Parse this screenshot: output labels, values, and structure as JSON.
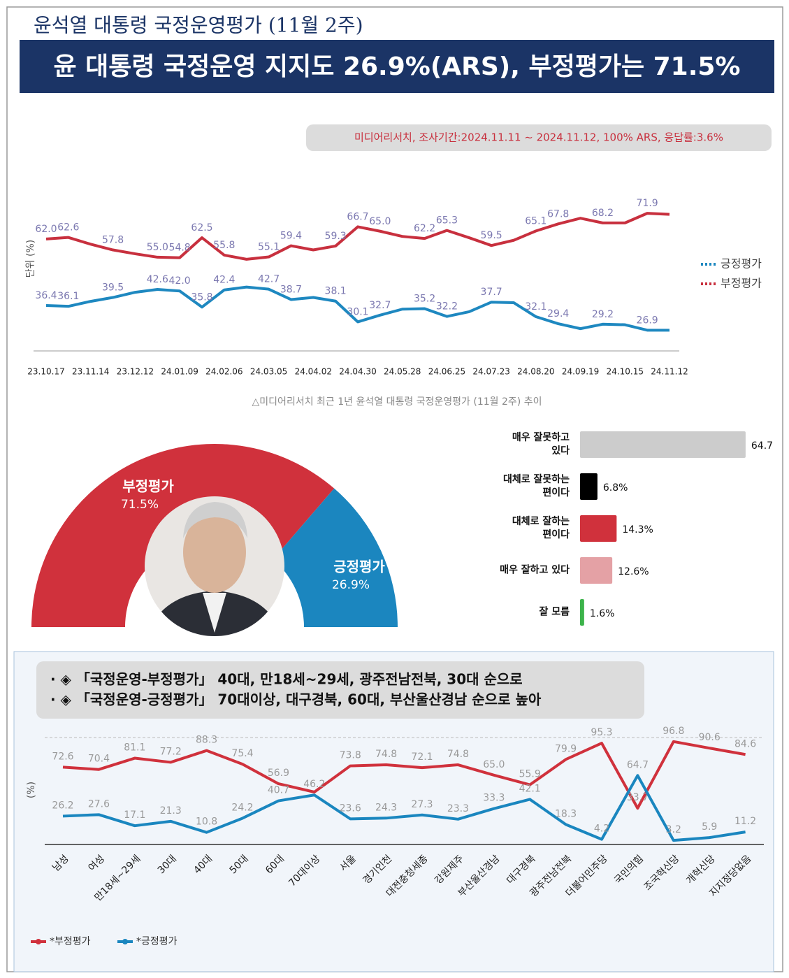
{
  "header": {
    "title": "윤석열 대통령 국정운영평가 (11월 2주)",
    "headline": "윤 대통령 국정운영 지지도 26.9%(ARS), 부정평가는 71.5%",
    "source": "미디어리서치, 조사기간:2024.11.11 ~ 2024.11.12, 100% ARS, 응답률:3.6%"
  },
  "chart_data": [
    {
      "type": "line",
      "ylabel": "단위 (%)",
      "caption": "△미디어리서치 최근 1년 윤석열 대통령 국정운영평가 (11월 2주) 추이",
      "legend": "right",
      "ylim": [
        20,
        80
      ],
      "categories": [
        "23.10.17",
        null,
        "23.11.14",
        null,
        "23.12.12",
        null,
        "24.01.09",
        null,
        "24.02.06",
        null,
        "24.03.05",
        null,
        "24.04.02",
        null,
        "24.04.30",
        null,
        "24.05.28",
        null,
        "24.06.25",
        null,
        "24.07.23",
        null,
        "24.08.20",
        null,
        "24.09.19",
        null,
        "24.10.15",
        null,
        "24.11.12"
      ],
      "series": [
        {
          "name": "긍정평가",
          "color": "#1e88c0",
          "values": [
            36.4,
            36.1,
            38.0,
            39.5,
            41.5,
            42.6,
            42.0,
            35.8,
            42.4,
            43.5,
            42.7,
            38.7,
            39.5,
            38.1,
            30.1,
            32.7,
            35.0,
            35.2,
            32.2,
            34.0,
            37.7,
            37.5,
            32.1,
            29.4,
            27.5,
            29.2,
            29.0,
            26.9,
            26.9
          ],
          "value_labels": [
            "36.4",
            "36.1",
            null,
            "39.5",
            null,
            "42.6",
            "42.0",
            "35.8",
            "42.4",
            null,
            "42.7",
            "38.7",
            null,
            "38.1",
            "30.1",
            "32.7",
            null,
            "35.2",
            "32.2",
            null,
            "37.7",
            null,
            "32.1",
            "29.4",
            null,
            "29.2",
            null,
            "26.9",
            null
          ]
        },
        {
          "name": "부정평가",
          "color": "#c8303e",
          "values": [
            62.0,
            62.6,
            60.0,
            57.8,
            56.3,
            55.0,
            54.8,
            62.5,
            55.8,
            54.2,
            55.1,
            59.4,
            57.8,
            59.3,
            66.7,
            65.0,
            63.0,
            62.2,
            65.3,
            62.5,
            59.5,
            61.5,
            65.1,
            67.8,
            70.0,
            68.2,
            68.2,
            71.9,
            71.5
          ],
          "value_labels": [
            "62.0",
            "62.6",
            null,
            "57.8",
            null,
            "55.0",
            "54.8",
            "62.5",
            "55.8",
            null,
            "55.1",
            "59.4",
            null,
            "59.3",
            "66.7",
            "65.0",
            null,
            "62.2",
            "65.3",
            null,
            "59.5",
            null,
            "65.1",
            "67.8",
            null,
            "68.2",
            null,
            "71.9",
            null
          ]
        }
      ]
    },
    {
      "type": "half-donut",
      "categories": [
        "부정평가",
        "긍정평가"
      ],
      "values": [
        71.5,
        26.9
      ],
      "value_labels": [
        "71.5%",
        "26.9%"
      ],
      "colors": [
        "#d0313c",
        "#1b86bf"
      ]
    },
    {
      "type": "hbar",
      "xlim": [
        0,
        65
      ],
      "categories": [
        "매우 잘못하고 있다",
        "대체로 잘못하는 편이다",
        "대체로 잘하는 편이다",
        "매우 잘하고 있다",
        "잘 모름"
      ],
      "values": [
        64.7,
        6.8,
        14.3,
        12.6,
        1.6
      ],
      "value_labels": [
        "64.7",
        "6.8%",
        "14.3%",
        "12.6%",
        "1.6%"
      ],
      "colors": [
        "#cccccc",
        "#000000",
        "#d0313c",
        "#e4a1a5",
        "#3cb34a"
      ]
    },
    {
      "type": "line",
      "ylabel": "(%)",
      "legend": "bottom-left",
      "ylim": [
        0,
        100
      ],
      "notes": [
        "· ◈ 「국정운영-부정평가」 40대, 만18세~29세, 광주전남전북, 30대 순으로",
        "· ◈ 「국정운영-긍정평가」 70대이상, 대구경북, 60대, 부산울산경남 순으로 높아"
      ],
      "categories": [
        "남성",
        "여성",
        "만18세~29세",
        "30대",
        "40대",
        "50대",
        "60대",
        "70대이상",
        "서울",
        "경기인천",
        "대전충청세종",
        "강원제주",
        "부산울산경남",
        "대구경북",
        "광주전남전북",
        "더불어민주당",
        "국민의힘",
        "조국혁신당",
        "개혁신당",
        "지지정당없음"
      ],
      "series": [
        {
          "name": "*부정평가",
          "color": "#d0313c",
          "values": [
            72.6,
            70.4,
            81.1,
            77.2,
            88.3,
            75.4,
            56.9,
            49.0,
            73.8,
            74.8,
            72.1,
            74.8,
            65.0,
            55.9,
            79.9,
            95.3,
            33.7,
            96.8,
            90.6,
            84.6
          ],
          "value_labels": [
            "72.6",
            "70.4",
            "81.1",
            "77.2",
            "88.3",
            "75.4",
            "56.9",
            null,
            "73.8",
            "74.8",
            "72.1",
            "74.8",
            "65.0",
            "55.9",
            "79.9",
            "95.3",
            "33.7",
            "96.8",
            "90.6",
            "84.6"
          ]
        },
        {
          "name": "*긍정평가",
          "color": "#1a86bf",
          "values": [
            26.2,
            27.6,
            17.1,
            21.3,
            10.8,
            24.2,
            40.7,
            46.2,
            23.6,
            24.3,
            27.3,
            23.3,
            33.3,
            42.1,
            18.3,
            4.2,
            64.7,
            3.2,
            5.9,
            11.2
          ],
          "value_labels": [
            "26.2",
            "27.6",
            "17.1",
            "21.3",
            "10.8",
            "24.2",
            "40.7",
            "46.2",
            "23.6",
            "24.3",
            "27.3",
            "23.3",
            "33.3",
            "42.1",
            "18.3",
            "4.2",
            "64.7",
            "3.2",
            "5.9",
            "11.2"
          ]
        }
      ]
    }
  ]
}
